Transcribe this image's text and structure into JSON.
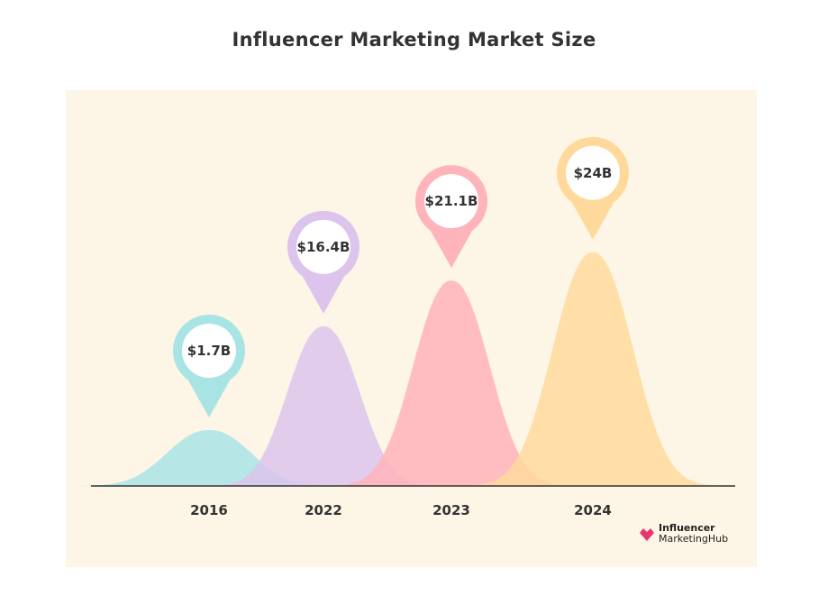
{
  "chart_data": {
    "type": "area",
    "title": "Influencer Marketing Market Size",
    "categories": [
      "2016",
      "2022",
      "2023",
      "2024"
    ],
    "values": [
      1.7,
      16.4,
      21.1,
      24
    ],
    "value_labels": [
      "$1.7B",
      "$16.4B",
      "$21.1B",
      "$24B"
    ],
    "series": [
      {
        "category": "2016",
        "value": 1.7,
        "label": "$1.7B",
        "color": "#a9e4e5"
      },
      {
        "category": "2022",
        "value": 16.4,
        "label": "$16.4B",
        "color": "#dcc4ec"
      },
      {
        "category": "2023",
        "value": 21.1,
        "label": "$21.1B",
        "color": "#ffb3bb"
      },
      {
        "category": "2024",
        "value": 24,
        "label": "$24B",
        "color": "#ffd99b"
      }
    ],
    "xlabel": "",
    "ylabel": "",
    "grid": false,
    "legend": "none"
  },
  "brand": {
    "line1": "Influencer",
    "line2": "MarketingHub",
    "color": "#e8356b"
  },
  "colors": {
    "panel_background": "#fdf5e6",
    "axis": "#333333"
  }
}
